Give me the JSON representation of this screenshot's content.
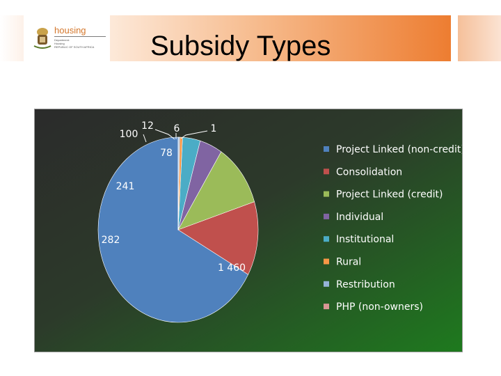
{
  "header": {
    "title": "Subsidy Types",
    "logo_name": "housing",
    "logo_sub1": "Department:",
    "logo_sub2": "Housing",
    "logo_sub3": "REPUBLIC OF SOUTH AFRICA"
  },
  "colors": {
    "banner_accent": "#ed7d31",
    "chart_bg_top": "#2b2b2b",
    "chart_bg_bottom": "#1e7a1e"
  },
  "chart_data": {
    "type": "pie",
    "title": "",
    "legend_position": "right",
    "slices": [
      {
        "label": "Project Linked (non-credit)",
        "value": 1460,
        "display": "1 460",
        "color": "#4f81bd"
      },
      {
        "label": "Consolidation",
        "value": 282,
        "display": "282",
        "color": "#c0504d"
      },
      {
        "label": "Project Linked (credit)",
        "value": 241,
        "display": "241",
        "color": "#9bbb59"
      },
      {
        "label": "Individual",
        "value": 100,
        "display": "100",
        "color": "#8064a2"
      },
      {
        "label": "Institutional",
        "value": 78,
        "display": "78",
        "color": "#4bacc6"
      },
      {
        "label": "Rural",
        "value": 12,
        "display": "12",
        "color": "#f79646"
      },
      {
        "label": "Restribution",
        "value": 6,
        "display": "6",
        "color": "#95b3d7"
      },
      {
        "label": "PHP (non-owners)",
        "value": 1,
        "display": "1",
        "color": "#d99694"
      }
    ]
  }
}
